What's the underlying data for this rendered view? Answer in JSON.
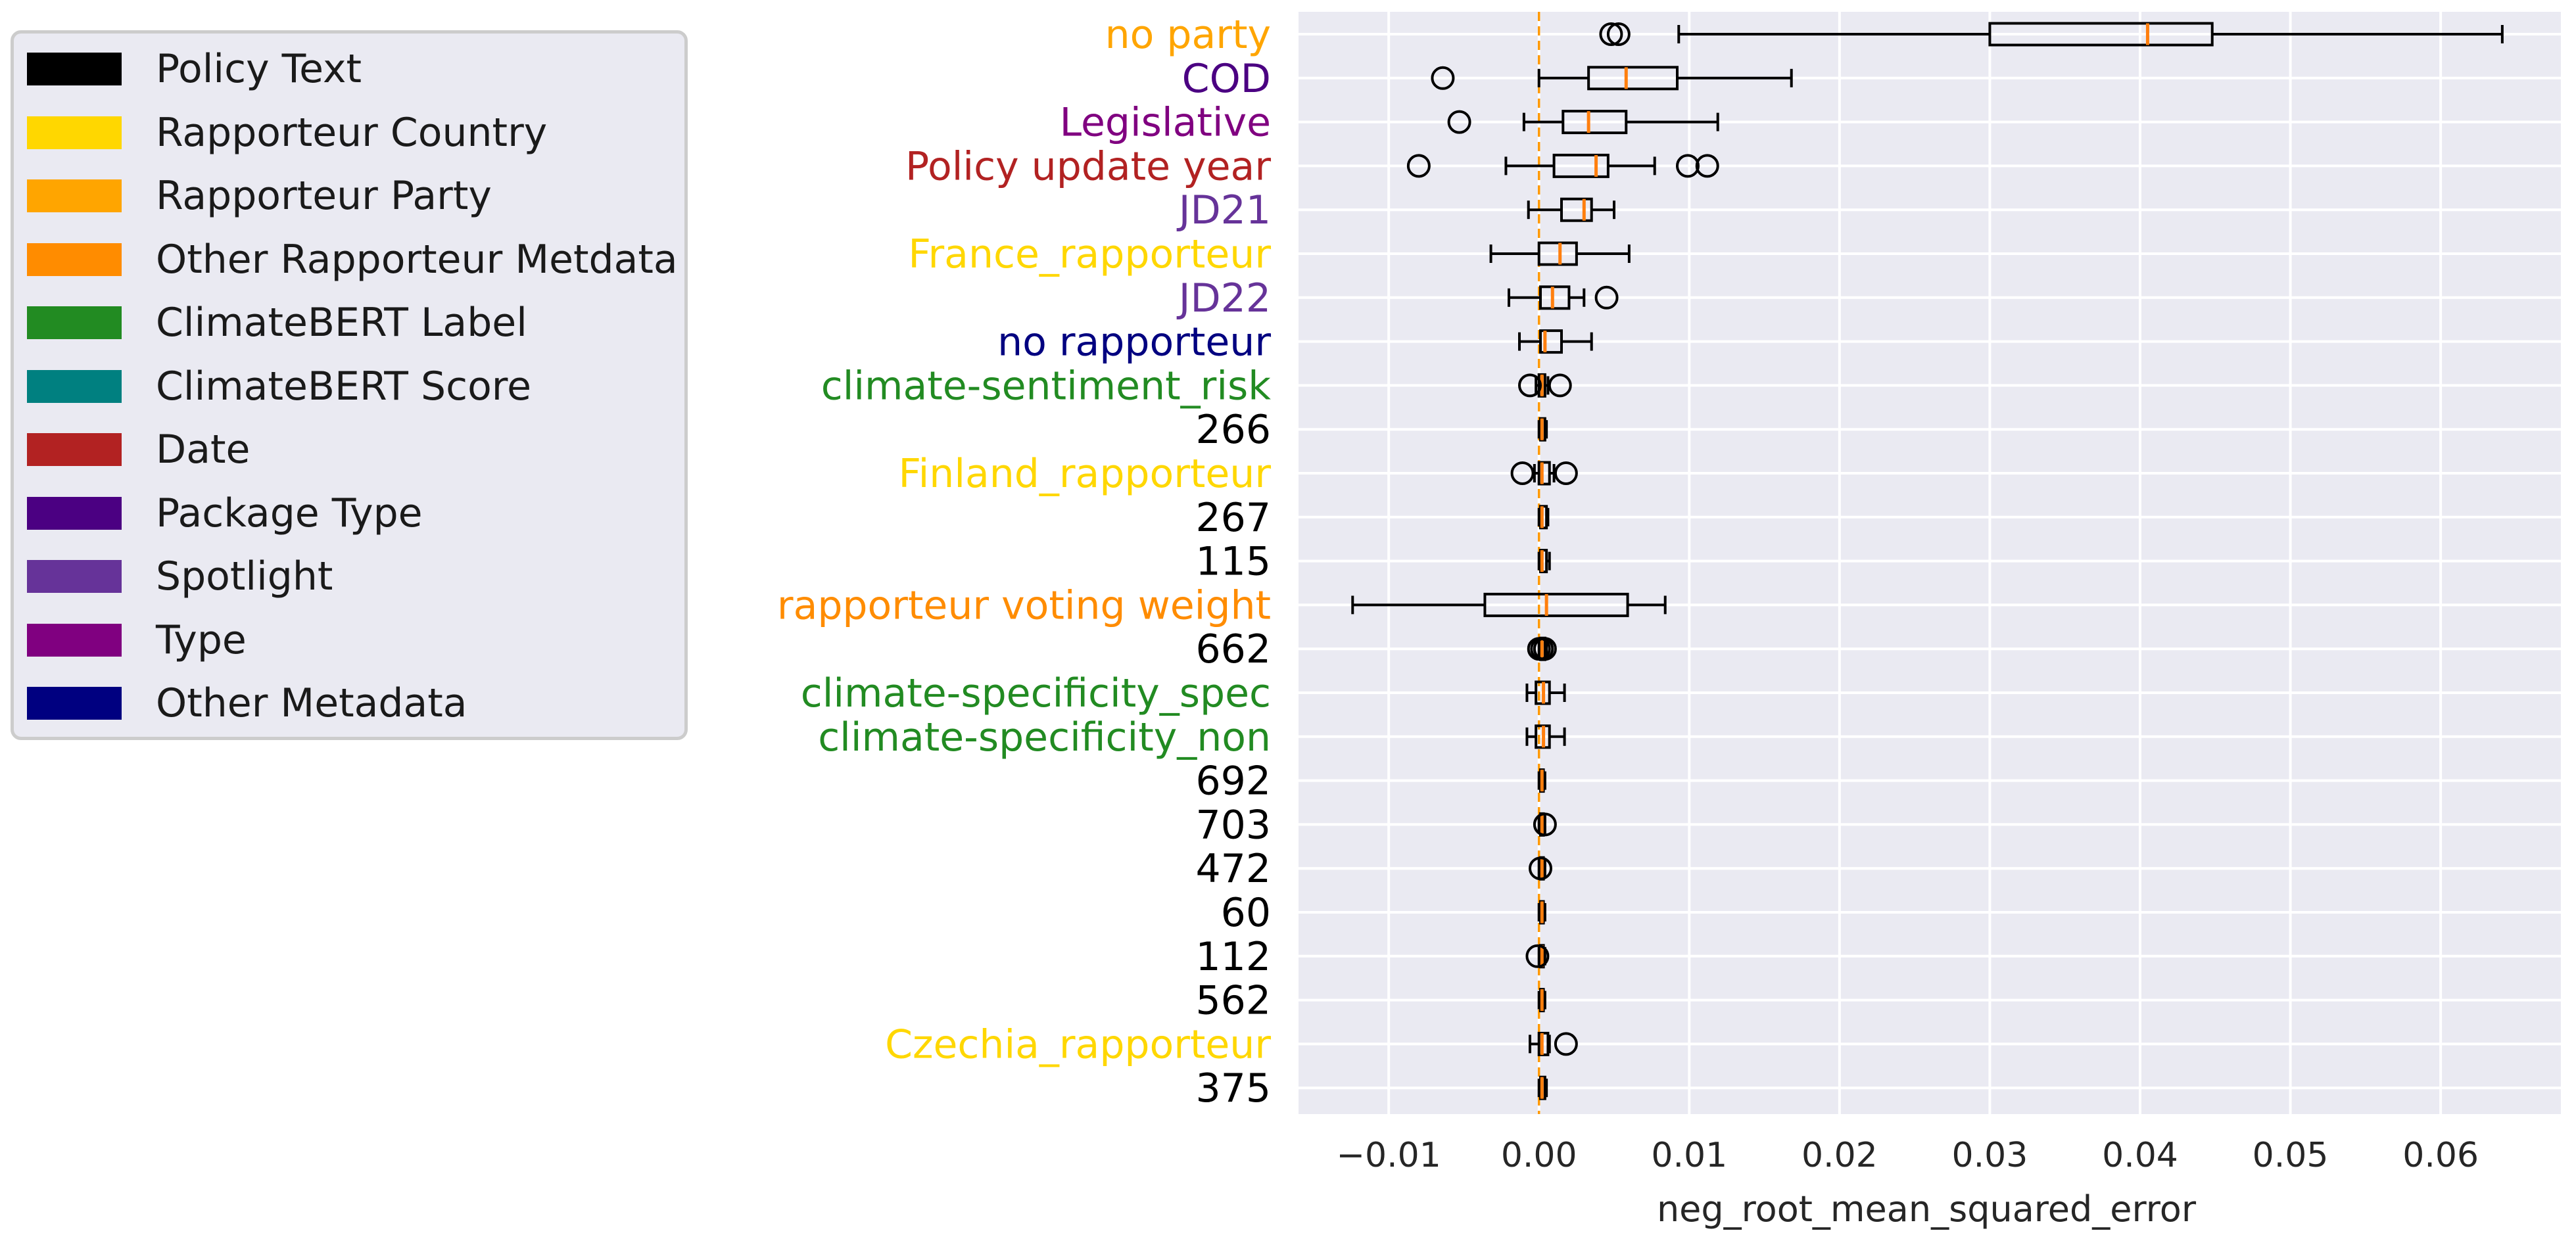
{
  "chart_data": {
    "type": "boxplot",
    "title": "",
    "xlabel": "neg_root_mean_squared_error",
    "xlim": [
      -0.016,
      0.068
    ],
    "xticks": [
      -0.01,
      0.0,
      0.01,
      0.02,
      0.03,
      0.04,
      0.05,
      0.06
    ],
    "xtick_labels": [
      "−0.01",
      "0.00",
      "0.01",
      "0.02",
      "0.03",
      "0.04",
      "0.05",
      "0.06"
    ],
    "grid": true,
    "reference_line": {
      "x": 0.0,
      "color": "#ff9900",
      "style": "dashed"
    },
    "legend": {
      "position": "outside-top-left",
      "entries": [
        {
          "label": "Policy Text",
          "color": "#000000"
        },
        {
          "label": "Rapporteur Country",
          "color": "#ffd700"
        },
        {
          "label": "Rapporteur Party",
          "color": "#ffa500"
        },
        {
          "label": "Other Rapporteur Metdata",
          "color": "#ff8c00"
        },
        {
          "label": "ClimateBERT Label",
          "color": "#228b22"
        },
        {
          "label": "ClimateBERT Score",
          "color": "#008080"
        },
        {
          "label": "Date",
          "color": "#b22222"
        },
        {
          "label": "Package Type",
          "color": "#4b0082"
        },
        {
          "label": "Spotlight",
          "color": "#663399"
        },
        {
          "label": "Type",
          "color": "#800080"
        },
        {
          "label": "Other Metadata",
          "color": "#000080"
        }
      ]
    },
    "features": [
      {
        "label": "no party",
        "color": "#ffa500",
        "whislo": 0.0093,
        "q1": 0.03,
        "med": 0.0405,
        "q3": 0.0448,
        "whishi": 0.0641,
        "fliers": [
          0.0048,
          0.0053
        ]
      },
      {
        "label": "COD",
        "color": "#4b0082",
        "whislo": 0.0,
        "q1": 0.0033,
        "med": 0.0058,
        "q3": 0.0092,
        "whishi": 0.0168,
        "fliers": [
          -0.0064
        ]
      },
      {
        "label": "Legislative",
        "color": "#800080",
        "whislo": -0.001,
        "q1": 0.0016,
        "med": 0.0033,
        "q3": 0.0058,
        "whishi": 0.0119,
        "fliers": [
          -0.0053
        ]
      },
      {
        "label": "Policy update year",
        "color": "#b22222",
        "whislo": -0.0022,
        "q1": 0.001,
        "med": 0.0038,
        "q3": 0.0046,
        "whishi": 0.0077,
        "fliers": [
          -0.008,
          0.0099,
          0.0112
        ]
      },
      {
        "label": "JD21",
        "color": "#663399",
        "whislo": -0.0007,
        "q1": 0.0015,
        "med": 0.003,
        "q3": 0.0035,
        "whishi": 0.005,
        "fliers": []
      },
      {
        "label": "France_rapporteur",
        "color": "#ffd700",
        "whislo": -0.0032,
        "q1": 0.0,
        "med": 0.0014,
        "q3": 0.0025,
        "whishi": 0.006,
        "fliers": []
      },
      {
        "label": "JD22",
        "color": "#663399",
        "whislo": -0.002,
        "q1": 0.0001,
        "med": 0.0009,
        "q3": 0.002,
        "whishi": 0.003,
        "fliers": [
          0.0045
        ]
      },
      {
        "label": "no rapporteur",
        "color": "#000080",
        "whislo": -0.0013,
        "q1": 0.0001,
        "med": 0.0004,
        "q3": 0.0015,
        "whishi": 0.0035,
        "fliers": []
      },
      {
        "label": "climate-sentiment_risk",
        "color": "#228b22",
        "whislo": -0.0002,
        "q1": 0.0,
        "med": 0.0002,
        "q3": 0.0004,
        "whishi": 0.0006,
        "fliers": [
          -0.0006,
          0.0014
        ]
      },
      {
        "label": "266",
        "color": "#000000",
        "whislo": 0.0,
        "q1": 0.0001,
        "med": 0.0002,
        "q3": 0.0004,
        "whishi": 0.0005,
        "fliers": []
      },
      {
        "label": "Finland_rapporteur",
        "color": "#ffd700",
        "whislo": -0.0003,
        "q1": 0.0,
        "med": 0.0002,
        "q3": 0.0007,
        "whishi": 0.001,
        "fliers": [
          -0.0011,
          0.0018
        ]
      },
      {
        "label": "267",
        "color": "#000000",
        "whislo": 0.0,
        "q1": 0.0001,
        "med": 0.0002,
        "q3": 0.0005,
        "whishi": 0.0006,
        "fliers": []
      },
      {
        "label": "115",
        "color": "#000000",
        "whislo": 0.0,
        "q1": 0.0001,
        "med": 0.0002,
        "q3": 0.0005,
        "whishi": 0.0007,
        "fliers": []
      },
      {
        "label": "rapporteur voting weight",
        "color": "#ff8c00",
        "whislo": -0.0124,
        "q1": -0.0036,
        "med": 0.0005,
        "q3": 0.0059,
        "whishi": 0.0084,
        "fliers": []
      },
      {
        "label": "662",
        "color": "#000000",
        "whislo": 0.0,
        "q1": 0.0001,
        "med": 0.0002,
        "q3": 0.0004,
        "whishi": 0.0005,
        "fliers": [
          0.0,
          0.0002,
          0.0004
        ]
      },
      {
        "label": "climate-specificity_spec",
        "color": "#228b22",
        "whislo": -0.0008,
        "q1": -0.0002,
        "med": 0.0003,
        "q3": 0.0007,
        "whishi": 0.0017,
        "fliers": []
      },
      {
        "label": "climate-specificity_non",
        "color": "#228b22",
        "whislo": -0.0008,
        "q1": -0.0002,
        "med": 0.0003,
        "q3": 0.0007,
        "whishi": 0.0017,
        "fliers": []
      },
      {
        "label": "692",
        "color": "#000000",
        "whislo": 0.0,
        "q1": 0.0001,
        "med": 0.0002,
        "q3": 0.0003,
        "whishi": 0.0004,
        "fliers": []
      },
      {
        "label": "703",
        "color": "#000000",
        "whislo": 0.0,
        "q1": 0.0001,
        "med": 0.0002,
        "q3": 0.0003,
        "whishi": 0.0004,
        "fliers": [
          0.0004
        ]
      },
      {
        "label": "472",
        "color": "#000000",
        "whislo": 0.0,
        "q1": 0.0001,
        "med": 0.0002,
        "q3": 0.0003,
        "whishi": 0.0004,
        "fliers": [
          0.0001
        ]
      },
      {
        "label": "60",
        "color": "#000000",
        "whislo": 0.0,
        "q1": 0.0001,
        "med": 0.0002,
        "q3": 0.0003,
        "whishi": 0.0004,
        "fliers": []
      },
      {
        "label": "112",
        "color": "#000000",
        "whislo": 0.0,
        "q1": 0.0001,
        "med": 0.0002,
        "q3": 0.0003,
        "whishi": 0.0004,
        "fliers": [
          -0.0001
        ]
      },
      {
        "label": "562",
        "color": "#000000",
        "whislo": 0.0,
        "q1": 0.0001,
        "med": 0.0002,
        "q3": 0.0003,
        "whishi": 0.0004,
        "fliers": []
      },
      {
        "label": "Czechia_rapporteur",
        "color": "#ffd700",
        "whislo": -0.0006,
        "q1": 0.0,
        "med": 0.0002,
        "q3": 0.0006,
        "whishi": 0.0007,
        "fliers": [
          0.0018
        ]
      },
      {
        "label": "375",
        "color": "#000000",
        "whislo": 0.0,
        "q1": 0.0001,
        "med": 0.0002,
        "q3": 0.0004,
        "whishi": 0.0005,
        "fliers": []
      }
    ]
  }
}
